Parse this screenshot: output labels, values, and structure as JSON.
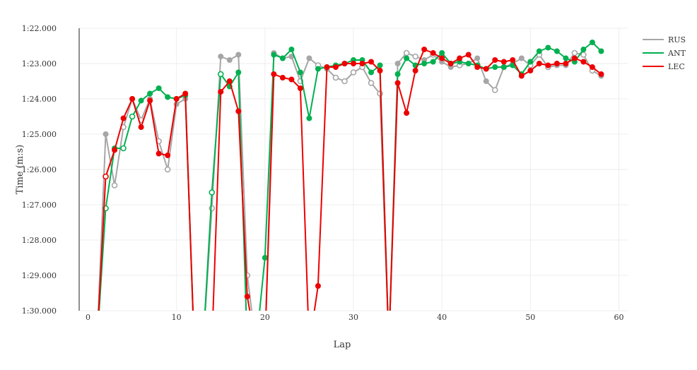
{
  "chart_data": {
    "type": "line",
    "xlabel": "Lap",
    "ylabel": "Time (m:s)",
    "xlim": [
      -1,
      61
    ],
    "ylim_seconds": [
      82,
      90
    ],
    "y_reversed": true,
    "x_ticks": [
      0,
      10,
      20,
      30,
      40,
      50,
      60
    ],
    "x_tick_labels": [
      "0",
      "10",
      "20",
      "30",
      "40",
      "50",
      "60"
    ],
    "y_ticks_seconds": [
      82,
      83,
      84,
      85,
      86,
      87,
      88,
      89,
      90
    ],
    "y_tick_labels": [
      "1:22.000",
      "1:23.000",
      "1:24.000",
      "1:25.000",
      "1:26.000",
      "1:27.000",
      "1:28.000",
      "1:29.000",
      "1:30.000"
    ],
    "grid": true,
    "legend_position": "top-right",
    "series": [
      {
        "name": "RUS",
        "color": "#a6a6a6",
        "points": [
          [
            1,
            91
          ],
          [
            2,
            85.0
          ],
          [
            3,
            86.45
          ],
          [
            4,
            84.8
          ],
          [
            5,
            84.0
          ],
          [
            6,
            84.6
          ],
          [
            7,
            84.0
          ],
          [
            8,
            85.2
          ],
          [
            9,
            86.0
          ],
          [
            10,
            84.15
          ],
          [
            11,
            84.0
          ],
          [
            12,
            91
          ],
          [
            13,
            91
          ],
          [
            14,
            87.1
          ],
          [
            15,
            82.8
          ],
          [
            16,
            82.9
          ],
          [
            17,
            82.75
          ],
          [
            18,
            89.0
          ],
          [
            19,
            91
          ],
          [
            20,
            91
          ],
          [
            21,
            82.7
          ],
          [
            22,
            82.85
          ],
          [
            23,
            82.8
          ],
          [
            24,
            83.5
          ],
          [
            25,
            82.85
          ],
          [
            26,
            83.05
          ],
          [
            27,
            83.15
          ],
          [
            28,
            83.4
          ],
          [
            29,
            83.5
          ],
          [
            30,
            83.25
          ],
          [
            31,
            83.1
          ],
          [
            32,
            83.55
          ],
          [
            33,
            83.85
          ],
          [
            34,
            91
          ],
          [
            35,
            83.0
          ],
          [
            36,
            82.7
          ],
          [
            37,
            82.8
          ],
          [
            38,
            82.9
          ],
          [
            39,
            82.75
          ],
          [
            40,
            82.95
          ],
          [
            41,
            83.1
          ],
          [
            42,
            83.05
          ],
          [
            43,
            83.0
          ],
          [
            44,
            82.85
          ],
          [
            45,
            83.5
          ],
          [
            46,
            83.75
          ],
          [
            47,
            83.1
          ],
          [
            48,
            83.0
          ],
          [
            49,
            82.85
          ],
          [
            50,
            83.05
          ],
          [
            51,
            82.75
          ],
          [
            52,
            83.1
          ],
          [
            53,
            83.05
          ],
          [
            54,
            83.05
          ],
          [
            55,
            82.7
          ],
          [
            56,
            82.75
          ],
          [
            57,
            83.2
          ],
          [
            58,
            83.35
          ]
        ],
        "open_markers_x": [
          3,
          4,
          6,
          8,
          9,
          14,
          18,
          24,
          26,
          28,
          29,
          30,
          31,
          32,
          33,
          36,
          37,
          39,
          42,
          46,
          47,
          50,
          51,
          52,
          55,
          56,
          57
        ]
      },
      {
        "name": "ANT",
        "color": "#00b050",
        "points": [
          [
            1,
            91
          ],
          [
            2,
            87.1
          ],
          [
            3,
            85.4
          ],
          [
            4,
            85.4
          ],
          [
            5,
            84.5
          ],
          [
            6,
            84.05
          ],
          [
            7,
            83.85
          ],
          [
            8,
            83.7
          ],
          [
            9,
            83.95
          ],
          [
            10,
            84.0
          ],
          [
            11,
            83.9
          ],
          [
            12,
            91
          ],
          [
            13,
            91
          ],
          [
            14,
            86.65
          ],
          [
            15,
            83.3
          ],
          [
            16,
            83.65
          ],
          [
            17,
            83.25
          ],
          [
            18,
            91
          ],
          [
            19,
            91
          ],
          [
            20,
            88.5
          ],
          [
            21,
            82.75
          ],
          [
            22,
            82.85
          ],
          [
            23,
            82.6
          ],
          [
            24,
            83.25
          ],
          [
            25,
            84.55
          ],
          [
            26,
            83.15
          ],
          [
            27,
            83.1
          ],
          [
            28,
            83.05
          ],
          [
            29,
            83.0
          ],
          [
            30,
            82.9
          ],
          [
            31,
            82.9
          ],
          [
            32,
            83.25
          ],
          [
            33,
            83.05
          ],
          [
            34,
            91
          ],
          [
            35,
            83.3
          ],
          [
            36,
            82.85
          ],
          [
            37,
            83.05
          ],
          [
            38,
            83.0
          ],
          [
            39,
            82.95
          ],
          [
            40,
            82.7
          ],
          [
            41,
            83.0
          ],
          [
            42,
            82.95
          ],
          [
            43,
            83.0
          ],
          [
            44,
            83.05
          ],
          [
            45,
            83.15
          ],
          [
            46,
            83.1
          ],
          [
            47,
            83.1
          ],
          [
            48,
            83.05
          ],
          [
            49,
            83.3
          ],
          [
            50,
            82.95
          ],
          [
            51,
            82.65
          ],
          [
            52,
            82.55
          ],
          [
            53,
            82.65
          ],
          [
            54,
            82.85
          ],
          [
            55,
            82.95
          ],
          [
            56,
            82.6
          ],
          [
            57,
            82.4
          ],
          [
            58,
            82.65
          ]
        ],
        "open_markers_x": [
          2,
          4,
          5,
          14,
          15
        ]
      },
      {
        "name": "LEC",
        "color": "#ee0000",
        "points": [
          [
            1,
            91
          ],
          [
            2,
            86.2
          ],
          [
            3,
            85.45
          ],
          [
            4,
            84.55
          ],
          [
            5,
            84.0
          ],
          [
            6,
            84.8
          ],
          [
            7,
            84.05
          ],
          [
            8,
            85.55
          ],
          [
            9,
            85.6
          ],
          [
            10,
            84.0
          ],
          [
            11,
            83.85
          ],
          [
            12,
            91
          ],
          [
            13,
            91
          ],
          [
            14,
            91
          ],
          [
            15,
            83.8
          ],
          [
            16,
            83.5
          ],
          [
            17,
            84.35
          ],
          [
            18,
            89.6
          ],
          [
            19,
            91
          ],
          [
            20,
            91
          ],
          [
            21,
            83.3
          ],
          [
            22,
            83.4
          ],
          [
            23,
            83.45
          ],
          [
            24,
            83.7
          ],
          [
            25,
            91
          ],
          [
            26,
            89.3
          ],
          [
            27,
            83.1
          ],
          [
            28,
            83.1
          ],
          [
            29,
            83.0
          ],
          [
            30,
            83.0
          ],
          [
            31,
            83.0
          ],
          [
            32,
            82.95
          ],
          [
            33,
            83.2
          ],
          [
            34,
            91
          ],
          [
            35,
            83.55
          ],
          [
            36,
            84.4
          ],
          [
            37,
            83.2
          ],
          [
            38,
            82.6
          ],
          [
            39,
            82.7
          ],
          [
            40,
            82.85
          ],
          [
            41,
            83.0
          ],
          [
            42,
            82.85
          ],
          [
            43,
            82.75
          ],
          [
            44,
            83.1
          ],
          [
            45,
            83.15
          ],
          [
            46,
            82.9
          ],
          [
            47,
            82.95
          ],
          [
            48,
            82.9
          ],
          [
            49,
            83.35
          ],
          [
            50,
            83.2
          ],
          [
            51,
            83.0
          ],
          [
            52,
            83.05
          ],
          [
            53,
            83.0
          ],
          [
            54,
            83.0
          ],
          [
            55,
            82.85
          ],
          [
            56,
            82.95
          ],
          [
            57,
            83.1
          ],
          [
            58,
            83.3
          ]
        ],
        "open_markers_x": [
          2
        ]
      }
    ]
  }
}
